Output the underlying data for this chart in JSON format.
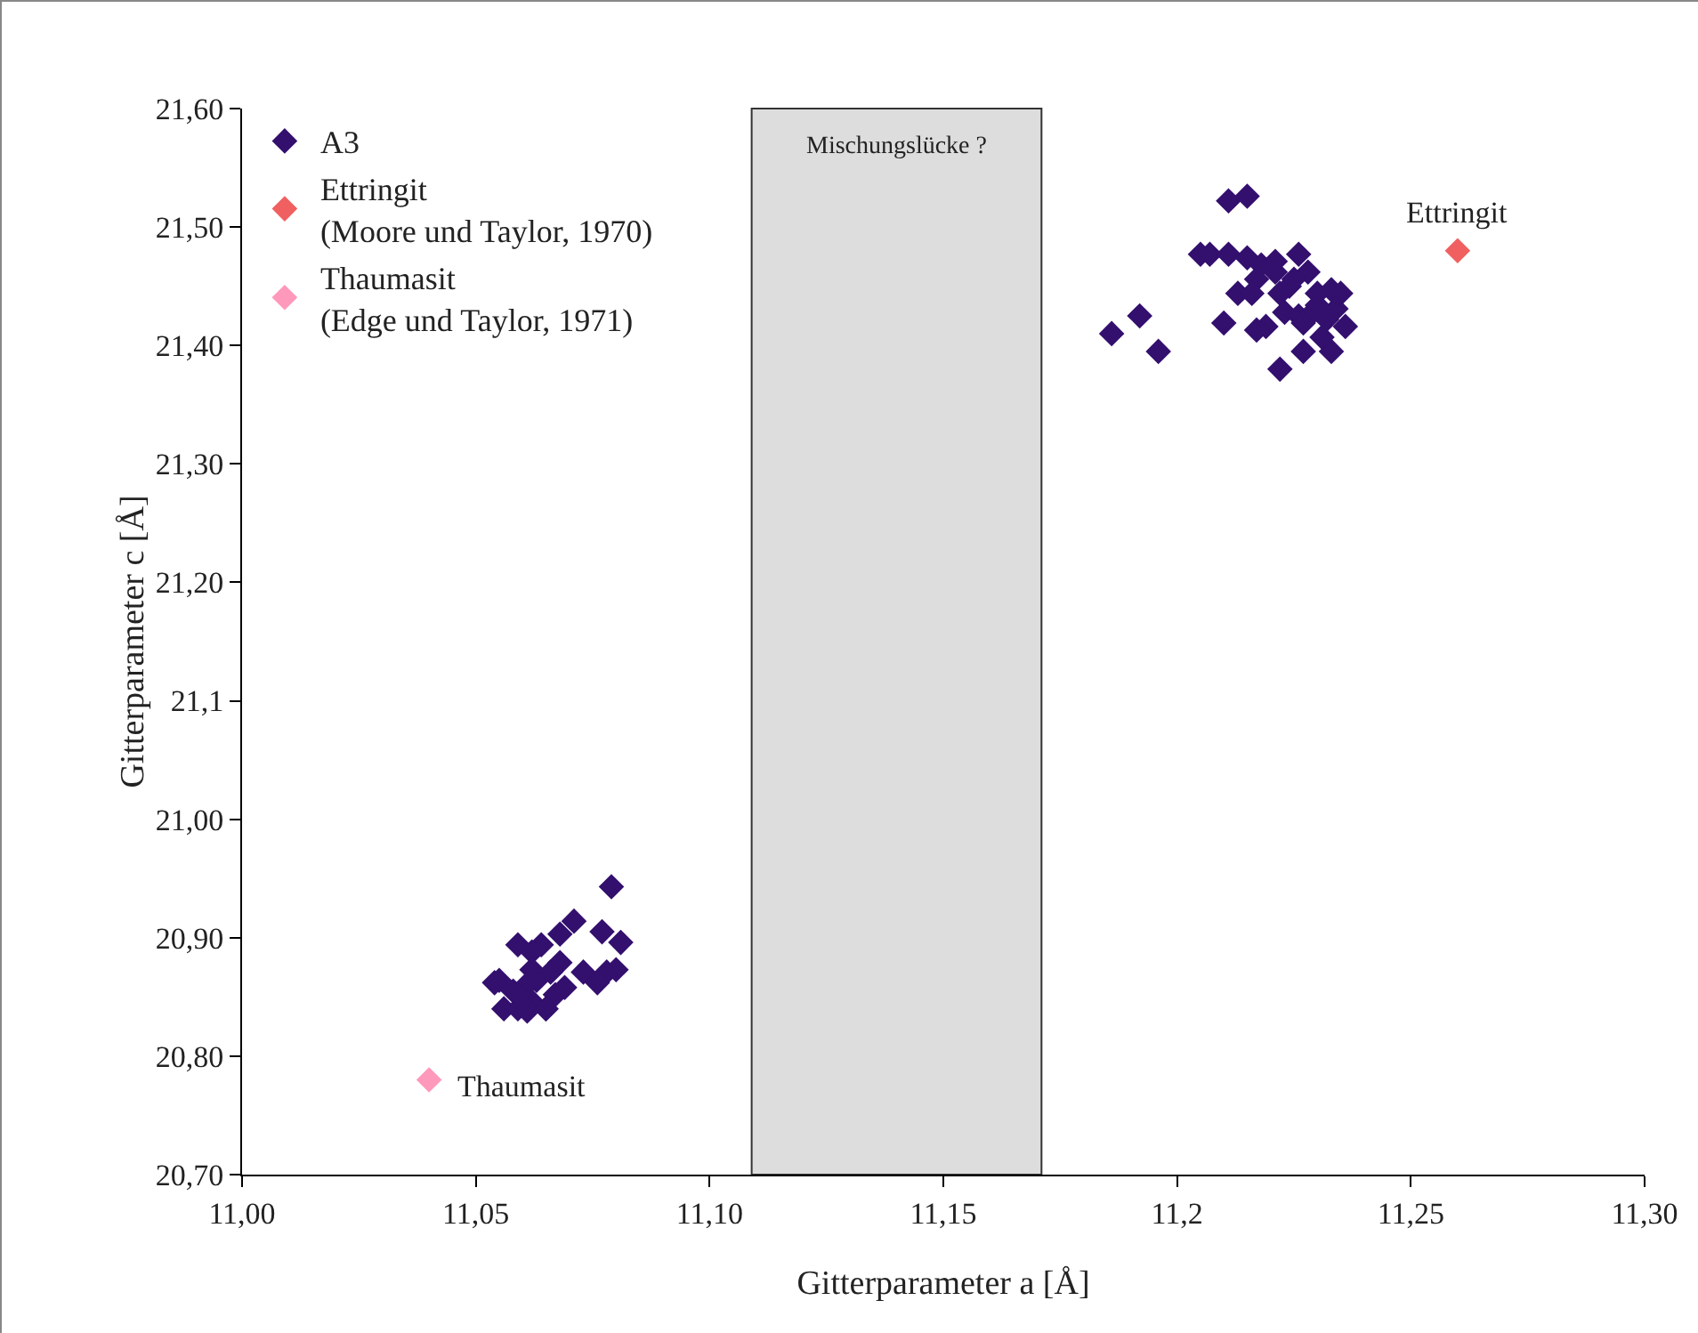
{
  "chart_data": {
    "type": "scatter",
    "xlabel": "Gitterparameter a [Å]",
    "ylabel": "Gitterparameter c [Å]",
    "xlim": [
      11.0,
      11.3
    ],
    "ylim": [
      20.7,
      21.6
    ],
    "xticks": [
      {
        "value": 11.0,
        "label": "11,00"
      },
      {
        "value": 11.05,
        "label": "11,05"
      },
      {
        "value": 11.1,
        "label": "11,10"
      },
      {
        "value": 11.15,
        "label": "11,15"
      },
      {
        "value": 11.2,
        "label": "11,2"
      },
      {
        "value": 11.25,
        "label": "11,25"
      },
      {
        "value": 11.3,
        "label": "11,30"
      }
    ],
    "yticks": [
      {
        "value": 20.7,
        "label": "20,70"
      },
      {
        "value": 20.8,
        "label": "20,80"
      },
      {
        "value": 20.9,
        "label": "20,90"
      },
      {
        "value": 21.0,
        "label": "21,00"
      },
      {
        "value": 21.1,
        "label": "21,1"
      },
      {
        "value": 21.2,
        "label": "21,20"
      },
      {
        "value": 21.3,
        "label": "21,30"
      },
      {
        "value": 21.4,
        "label": "21,40"
      },
      {
        "value": 21.5,
        "label": "21,50"
      },
      {
        "value": 21.6,
        "label": "21,60"
      }
    ],
    "grid": false,
    "legend": "top left",
    "marker": "diamond",
    "bands": [
      {
        "axis": "x",
        "from": 11.109,
        "to": 11.171,
        "label": "Mischungslücke ?",
        "color": "#dddddd"
      }
    ],
    "annotations": [
      {
        "text": "Ettringit",
        "x": 11.26,
        "y": 21.48
      },
      {
        "text": "Thaumasit",
        "x": 11.04,
        "y": 20.78
      }
    ],
    "series": [
      {
        "name": "A3",
        "color": "#330f6e",
        "x": [
          11.211,
          11.215,
          11.205,
          11.207,
          11.211,
          11.215,
          11.218,
          11.213,
          11.217,
          11.221,
          11.226,
          11.228,
          11.222,
          11.224,
          11.23,
          11.233,
          11.219,
          11.223,
          11.226,
          11.229,
          11.232,
          11.236,
          11.235,
          11.186,
          11.192,
          11.196,
          11.21,
          11.217,
          11.227,
          11.233,
          11.222,
          11.231,
          11.227,
          11.23,
          11.234,
          11.225,
          11.221,
          11.216,
          11.079,
          11.071,
          11.077,
          11.081,
          11.073,
          11.068,
          11.064,
          11.062,
          11.059,
          11.062,
          11.066,
          11.063,
          11.061,
          11.058,
          11.055,
          11.056,
          11.059,
          11.062,
          11.065,
          11.067,
          11.069,
          11.068,
          11.065,
          11.078,
          11.08,
          11.076,
          11.06,
          11.054,
          11.061
        ],
        "values": [
          21.522,
          21.526,
          21.477,
          21.477,
          21.477,
          21.474,
          21.468,
          21.444,
          21.456,
          21.462,
          21.477,
          21.462,
          21.444,
          21.45,
          21.444,
          21.447,
          21.416,
          21.428,
          21.425,
          21.428,
          21.422,
          21.416,
          21.444,
          21.41,
          21.425,
          21.395,
          21.419,
          21.413,
          21.395,
          21.395,
          21.38,
          21.407,
          21.419,
          21.434,
          21.431,
          21.456,
          21.471,
          21.444,
          20.943,
          20.914,
          20.905,
          20.896,
          20.871,
          20.903,
          20.894,
          20.888,
          20.894,
          20.873,
          20.871,
          20.864,
          20.861,
          20.855,
          20.864,
          20.84,
          20.84,
          20.846,
          20.84,
          20.852,
          20.858,
          20.879,
          20.84,
          20.871,
          20.873,
          20.862,
          20.849,
          20.862,
          20.838
        ]
      },
      {
        "name": "Ettringit\n(Moore und Taylor, 1970)",
        "color": "#f06060",
        "x": [
          11.26
        ],
        "values": [
          21.48
        ]
      },
      {
        "name": "Thaumasit\n(Edge und Taylor, 1971)",
        "color": "#ff99bb",
        "x": [
          11.04
        ],
        "values": [
          20.78
        ]
      }
    ]
  }
}
